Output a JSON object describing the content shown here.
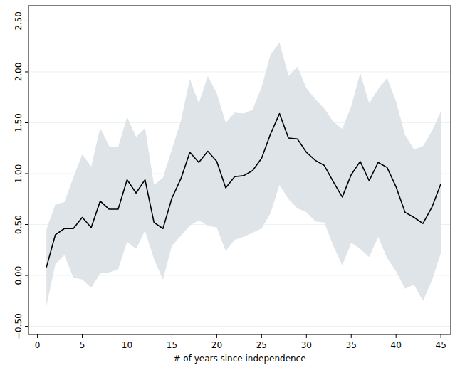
{
  "chart_data": {
    "type": "line",
    "x_label": "# of years since independence",
    "x": [
      1,
      2,
      3,
      4,
      5,
      6,
      7,
      8,
      9,
      10,
      11,
      12,
      13,
      14,
      15,
      16,
      17,
      18,
      19,
      20,
      21,
      22,
      23,
      24,
      25,
      26,
      27,
      28,
      29,
      30,
      31,
      32,
      33,
      34,
      35,
      36,
      37,
      38,
      39,
      40,
      41,
      42,
      43,
      44,
      45
    ],
    "series": [
      {
        "color": "#000000",
        "values": [
          0.08,
          0.4,
          0.46,
          0.46,
          0.57,
          0.47,
          0.73,
          0.65,
          0.65,
          0.94,
          0.81,
          0.94,
          0.52,
          0.46,
          0.76,
          0.95,
          1.21,
          1.11,
          1.22,
          1.12,
          0.86,
          0.97,
          0.98,
          1.03,
          1.15,
          1.39,
          1.59,
          1.35,
          1.34,
          1.21,
          1.13,
          1.08,
          0.92,
          0.77,
          0.99,
          1.12,
          0.93,
          1.11,
          1.06,
          0.87,
          0.62,
          0.57,
          0.51,
          0.67,
          0.9
        ],
        "lower": [
          -0.3,
          0.11,
          0.2,
          -0.02,
          -0.04,
          -0.12,
          0.02,
          0.03,
          0.06,
          0.33,
          0.26,
          0.44,
          0.16,
          -0.04,
          0.29,
          0.39,
          0.49,
          0.54,
          0.49,
          0.47,
          0.24,
          0.35,
          0.38,
          0.42,
          0.46,
          0.61,
          0.89,
          0.75,
          0.66,
          0.62,
          0.53,
          0.52,
          0.29,
          0.1,
          0.32,
          0.26,
          0.18,
          0.38,
          0.17,
          0.04,
          -0.13,
          -0.09,
          -0.25,
          -0.05,
          0.22
        ],
        "upper": [
          0.45,
          0.7,
          0.72,
          0.96,
          1.19,
          1.07,
          1.45,
          1.27,
          1.26,
          1.56,
          1.36,
          1.45,
          0.89,
          0.96,
          1.24,
          1.52,
          1.93,
          1.69,
          1.96,
          1.79,
          1.5,
          1.6,
          1.59,
          1.63,
          1.85,
          2.17,
          2.29,
          1.96,
          2.05,
          1.84,
          1.73,
          1.64,
          1.51,
          1.44,
          1.66,
          1.99,
          1.69,
          1.83,
          1.94,
          1.71,
          1.38,
          1.24,
          1.27,
          1.42,
          1.61
        ]
      }
    ],
    "xlim": [
      -1,
      46.1
    ],
    "ylim": [
      -0.58,
      2.65
    ],
    "xticks": [
      0,
      5,
      10,
      15,
      20,
      25,
      30,
      35,
      40,
      45
    ],
    "yticks": [
      {
        "value": -0.5,
        "label": "−0.50"
      },
      {
        "value": 0,
        "label": "0.00"
      },
      {
        "value": 0.5,
        "label": "0.50"
      },
      {
        "value": 1,
        "label": "1.00"
      },
      {
        "value": 1.5,
        "label": "1.50"
      },
      {
        "value": 2,
        "label": "2.00"
      },
      {
        "value": 2.5,
        "label": "2.50"
      }
    ],
    "grid": true
  }
}
